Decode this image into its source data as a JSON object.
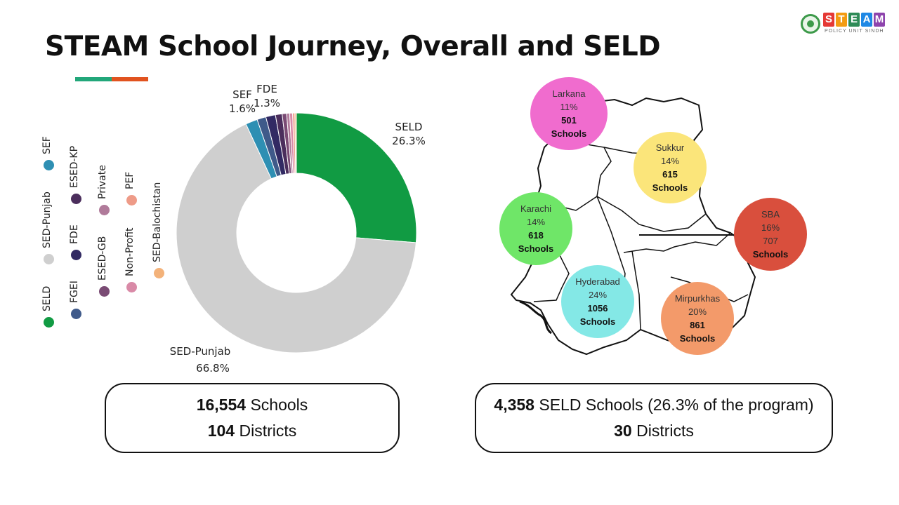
{
  "page": {
    "title": "STEAM School Journey, Overall and SELD"
  },
  "accent_colors": [
    "#22a77a",
    "#e1531f"
  ],
  "logo": {
    "letters": [
      "S",
      "T",
      "E",
      "A",
      "M"
    ],
    "letter_colors": [
      "#e53935",
      "#f39c12",
      "#2e8b57",
      "#1e88e5",
      "#8e44ad"
    ],
    "subtitle": "POLICY UNIT SINDH"
  },
  "legend": [
    {
      "label": "SELD",
      "color": "#119b43"
    },
    {
      "label": "SED-Punjab",
      "color": "#cfcfcf"
    },
    {
      "label": "SEF",
      "color": "#2e8fb3"
    },
    {
      "label": "FGEI",
      "color": "#3f5a8a"
    },
    {
      "label": "FDE",
      "color": "#322a63"
    },
    {
      "label": "ESED-KP",
      "color": "#4b2e5c"
    },
    {
      "label": "ESED-GB",
      "color": "#7a4b74"
    },
    {
      "label": "Private",
      "color": "#b07a9a"
    },
    {
      "label": "Non-Profit",
      "color": "#d98aa7"
    },
    {
      "label": "PEF",
      "color": "#ee9b88"
    },
    {
      "label": "SED-Balochistan",
      "color": "#f3b27a"
    }
  ],
  "chart_data": {
    "type": "pie",
    "donut": true,
    "slices": [
      {
        "name": "SELD",
        "value": 26.3,
        "label": "SELD",
        "value_label": "26.3%",
        "color": "#119b43"
      },
      {
        "name": "SED-Punjab",
        "value": 66.8,
        "label": "SED-Punjab",
        "value_label": "66.8%",
        "color": "#cfcfcf"
      },
      {
        "name": "SEF",
        "value": 1.6,
        "label": "SEF",
        "value_label": "1.6%",
        "color": "#2e8fb3"
      },
      {
        "name": "FGEI",
        "value": 1.2,
        "color": "#3f5a8a"
      },
      {
        "name": "FDE",
        "value": 1.3,
        "label": "FDE",
        "value_label": "1.3%",
        "color": "#322a63"
      },
      {
        "name": "ESED-KP",
        "value": 0.9,
        "color": "#4b2e5c"
      },
      {
        "name": "ESED-GB",
        "value": 0.6,
        "color": "#7a4b74"
      },
      {
        "name": "Private",
        "value": 0.4,
        "color": "#b07a9a"
      },
      {
        "name": "Non-Profit",
        "value": 0.4,
        "color": "#d98aa7"
      },
      {
        "name": "PEF",
        "value": 0.3,
        "color": "#ee9b88"
      },
      {
        "name": "SED-Balochistan",
        "value": 0.2,
        "color": "#f3b27a"
      }
    ]
  },
  "regions": [
    {
      "name": "Larkana",
      "pct": "11%",
      "count": "501",
      "unit": "Schools",
      "color": "#f06cce"
    },
    {
      "name": "Sukkur",
      "pct": "14%",
      "count": "615",
      "unit": "Schools",
      "color": "#fbe57a"
    },
    {
      "name": "Karachi",
      "pct": "14%",
      "count": "618",
      "unit": "Schools",
      "color": "#6fe668"
    },
    {
      "name": "SBA",
      "pct": "16%",
      "count": "707",
      "unit": "Schools",
      "color": "#d94f3d"
    },
    {
      "name": "Hyderabad",
      "pct": "24%",
      "count": "1056",
      "unit": "Schools",
      "color": "#84e8e6"
    },
    {
      "name": "Mirpurkhas",
      "pct": "20%",
      "count": "861",
      "unit": "Schools",
      "color": "#f39a6a"
    }
  ],
  "summary_overall": {
    "schools_value": "16,554",
    "schools_label": "Schools",
    "districts_value": "104",
    "districts_label": "Districts"
  },
  "summary_seld": {
    "schools_value": "4,358",
    "schools_label": "SELD Schools (26.3% of the program)",
    "districts_value": "30",
    "districts_label": "Districts"
  }
}
